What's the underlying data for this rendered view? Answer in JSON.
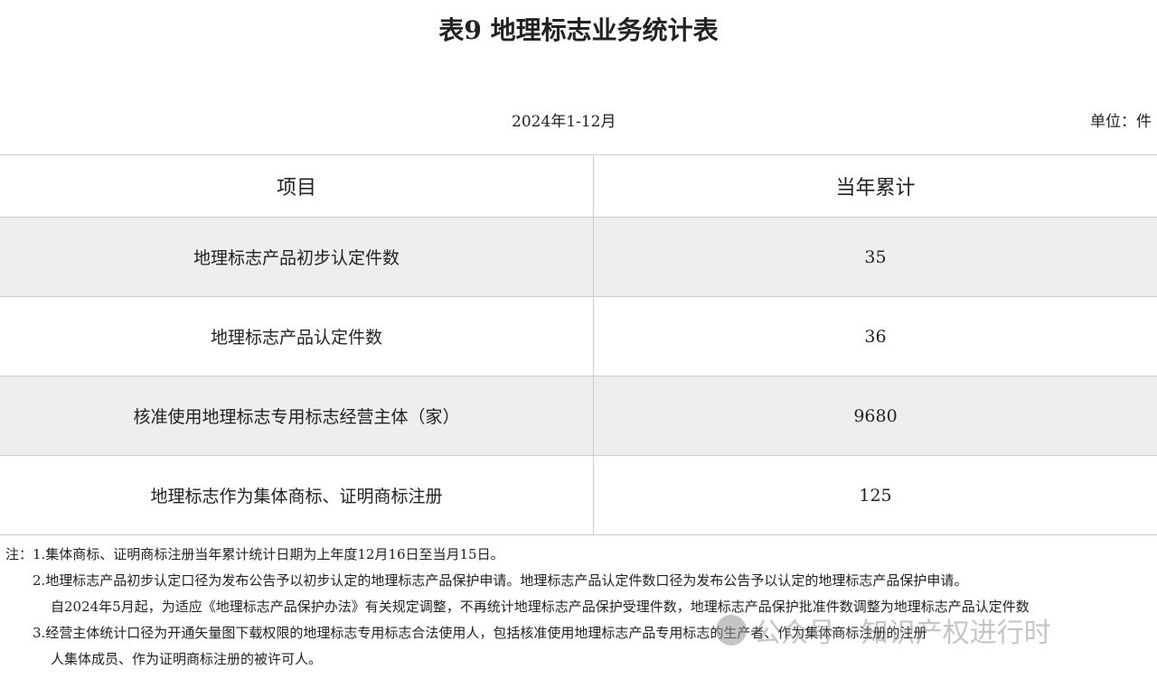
{
  "title": "表9 地理标志业务统计表",
  "period": "2024年1-12月",
  "unit": "单位：件",
  "table": {
    "headers": [
      "项目",
      "当年累计"
    ],
    "rows": [
      {
        "item": "地理标志产品初步认定件数",
        "value": "35"
      },
      {
        "item": "地理标志产品认定件数",
        "value": "36"
      },
      {
        "item": "核准使用地理标志专用标志经营主体（家）",
        "value": "9680"
      },
      {
        "item": "地理标志作为集体商标、证明商标注册",
        "value": "125"
      }
    ]
  },
  "notes": [
    "注：1.集体商标、证明商标注册当年累计统计日期为上年度12月16日至当月15日。",
    "2.地理标志产品初步认定口径为发布公告予以初步认定的地理标志产品保护申请。地理标志产品认定件数口径为发布公告予以认定的地理标志产品保护申请。",
    "自2024年5月起，为适应《地理标志产品保护办法》有关规定调整，不再统计地理标志产品保护受理件数，地理标志产品保护批准件数调整为地理标志产品认定件数",
    "3.经营主体统计口径为开通矢量图下载权限的地理标志专用标志合法使用人，包括核准使用地理标志产品专用标志的生产者、作为集体商标注册的注册",
    "人集体成员、作为证明商标注册的被许可人。"
  ],
  "watermark": "公众号 · 知识产权进行时"
}
